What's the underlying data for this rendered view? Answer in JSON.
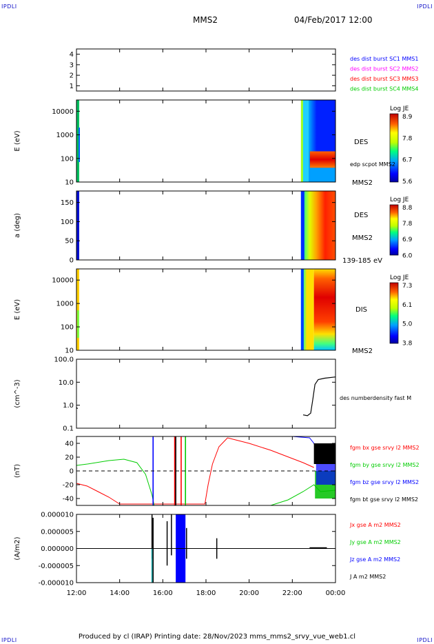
{
  "corner_label": "IPDLI",
  "header": {
    "spacecraft": "MMS2",
    "date": "04/Feb/2017 12:00"
  },
  "footer": {
    "text": "Produced by cl (IRAP)   Printing date: 28/Nov/2023   mms_mms2_srvy_vue_web1.cl"
  },
  "colors": {
    "blue": "#0000ff",
    "magenta": "#ff00ff",
    "red": "#ff0000",
    "green": "#00cc00",
    "black": "#000000"
  },
  "chart_data": [
    {
      "type": "line",
      "panel": "availability",
      "ylabel": "",
      "yticks": [
        "4",
        "3",
        "2",
        "1"
      ],
      "series": [
        {
          "name": "des dist burst SC1 MMS1",
          "color": "#0000ff"
        },
        {
          "name": "des dist burst SC2 MMS2",
          "color": "#ff00ff"
        },
        {
          "name": "des dist burst SC3 MMS3",
          "color": "#ff0000"
        },
        {
          "name": "des dist burst SC4 MMS4",
          "color": "#00cc00"
        }
      ]
    },
    {
      "type": "heatmap",
      "panel": "des-energy",
      "ylabel": "E (eV)",
      "yscale": "log",
      "ylim": [
        10,
        30000
      ],
      "yticks": [
        "10000",
        "1000",
        "100",
        "10"
      ],
      "labels": [
        "DES",
        "edp scpot MMS2",
        "MMS2"
      ],
      "colorbar": {
        "title": "Log JE",
        "ticks": [
          "8.9",
          "7.8",
          "6.7",
          "5.6"
        ],
        "range": [
          5.6,
          8.9
        ]
      }
    },
    {
      "type": "heatmap",
      "panel": "des-pitch",
      "ylabel": "a (deg)",
      "ylim": [
        0,
        180
      ],
      "yticks": [
        "150",
        "100",
        "50",
        "0"
      ],
      "labels": [
        "DES",
        "MMS2",
        "139-185 eV"
      ],
      "colorbar": {
        "title": "Log JE",
        "ticks": [
          "8.8",
          "7.8",
          "6.9",
          "6.0"
        ],
        "range": [
          6.0,
          8.8
        ]
      }
    },
    {
      "type": "heatmap",
      "panel": "dis-energy",
      "ylabel": "E (eV)",
      "yscale": "log",
      "ylim": [
        10,
        30000
      ],
      "yticks": [
        "10000",
        "1000",
        "100",
        "10"
      ],
      "labels": [
        "DIS",
        "MMS2"
      ],
      "colorbar": {
        "title": "Log JE",
        "ticks": [
          "7.3",
          "6.1",
          "5.0",
          "3.8"
        ],
        "range": [
          3.8,
          7.3
        ]
      }
    },
    {
      "type": "line",
      "panel": "density",
      "ylabel": "(cm^-3)",
      "yscale": "log",
      "ylim": [
        0.1,
        100
      ],
      "yticks": [
        "100.0",
        "10.0",
        "1.0",
        "0.1"
      ],
      "series": [
        {
          "name": "des numberdensity fast M",
          "color": "#000000",
          "points": [
            [
              12.0,
              0.8
            ],
            [
              12.05,
              0.7
            ],
            [
              22.5,
              0.38
            ],
            [
              22.7,
              0.35
            ],
            [
              22.85,
              0.45
            ],
            [
              22.95,
              1.8
            ],
            [
              23.05,
              8
            ],
            [
              23.2,
              13
            ],
            [
              23.5,
              15
            ],
            [
              24.0,
              17
            ]
          ]
        }
      ]
    },
    {
      "type": "line",
      "panel": "magnetic-field",
      "ylabel": "(nT)",
      "ylim": [
        -50,
        50
      ],
      "yticks": [
        "40",
        "20",
        "0",
        "-20",
        "-40"
      ],
      "series": [
        {
          "name": "fgm bx gse srvy l2 MMS2",
          "color": "#ff0000",
          "points": [
            [
              12.0,
              -18
            ],
            [
              12.5,
              -22
            ],
            [
              13.0,
              -30
            ],
            [
              13.5,
              -38
            ],
            [
              14.0,
              -48
            ],
            [
              17.95,
              -48
            ],
            [
              18.1,
              -20
            ],
            [
              18.3,
              10
            ],
            [
              18.6,
              35
            ],
            [
              19.0,
              48
            ],
            [
              20.0,
              40
            ],
            [
              21.0,
              30
            ],
            [
              22.0,
              18
            ],
            [
              22.5,
              12
            ],
            [
              23.0,
              5
            ]
          ]
        },
        {
          "name": "fgm by gse srvy l2 MMS2",
          "color": "#00cc00",
          "points": [
            [
              12.0,
              8
            ],
            [
              12.5,
              10
            ],
            [
              13.5,
              15
            ],
            [
              14.2,
              17
            ],
            [
              14.8,
              12
            ],
            [
              15.2,
              -5
            ],
            [
              15.5,
              -35
            ],
            [
              15.6,
              -50
            ],
            [
              21.0,
              -50
            ],
            [
              21.8,
              -42
            ],
            [
              22.5,
              -30
            ],
            [
              23.0,
              -20
            ],
            [
              23.3,
              -30
            ],
            [
              24.0,
              -28
            ]
          ]
        },
        {
          "name": "fgm bz gse srvy l2 MMS2",
          "color": "#0000ff",
          "points": [
            [
              22.0,
              50
            ],
            [
              22.8,
              48
            ],
            [
              23.0,
              40
            ],
            [
              23.3,
              20
            ],
            [
              24.0,
              20
            ]
          ]
        },
        {
          "name": "fgm bt gse srvy l2 MMS2",
          "color": "#000000",
          "points": [
            [
              23.0,
              40
            ],
            [
              23.2,
              25
            ],
            [
              23.6,
              20
            ],
            [
              24.0,
              22
            ]
          ]
        }
      ]
    },
    {
      "type": "line",
      "panel": "current-density",
      "ylabel": "(A/m2)",
      "ylim": [
        -1e-05,
        1e-05
      ],
      "yticks": [
        "0.000010",
        "0.000005",
        "0.000000",
        "-0.000005",
        "-0.000010"
      ],
      "series": [
        {
          "name": "Jx gse A m2 MMS2",
          "color": "#ff0000"
        },
        {
          "name": "Jy gse A m2 MMS2",
          "color": "#00cc00"
        },
        {
          "name": "Jz gse A m2 MMS2",
          "color": "#0000ff"
        },
        {
          "name": "J A m2 MMS2",
          "color": "#000000"
        }
      ]
    }
  ],
  "xaxis": {
    "range": [
      12,
      24
    ],
    "ticks": [
      "12:00",
      "14:00",
      "16:00",
      "18:00",
      "20:00",
      "22:00",
      "00:00"
    ]
  }
}
